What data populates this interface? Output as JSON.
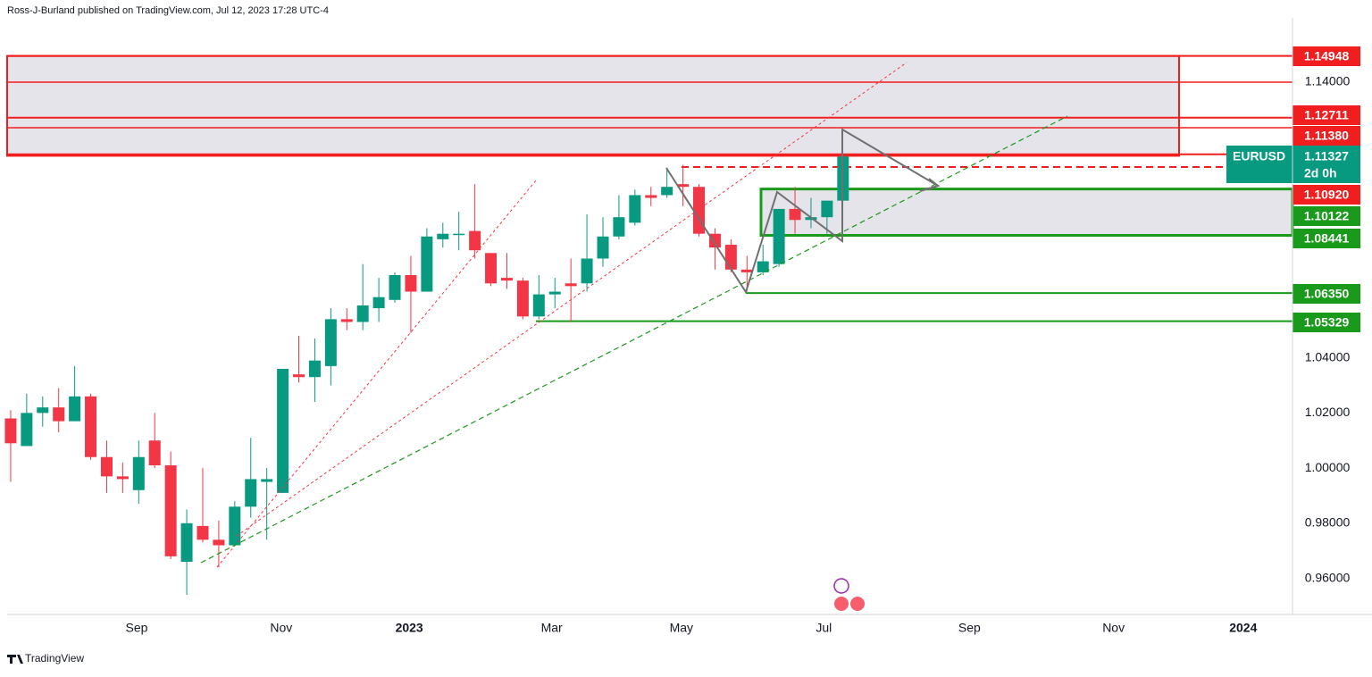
{
  "header": "Ross-J-Burland published on TradingView.com, Jul 12, 2023 17:28 UTC-4",
  "footer": "TradingView",
  "chart_data": {
    "type": "candlestick",
    "series": [
      {
        "name": "EURUSD",
        "countdown": "2d 0h",
        "up_color": "#089981",
        "down_color": "#f23645",
        "open": [
          1.018,
          1.008,
          1.02,
          1.022,
          1.017,
          1.026,
          1.004,
          0.997,
          0.992,
          1.01,
          1.001,
          0.966,
          0.979,
          0.974,
          0.972,
          0.986,
          0.995,
          0.991,
          1.034,
          1.033,
          1.037,
          1.054,
          1.053,
          1.058,
          1.061,
          1.07,
          1.064,
          1.083,
          1.085,
          1.086,
          1.078,
          1.069,
          1.068,
          1.055,
          1.063,
          1.067,
          1.067,
          1.076,
          1.084,
          1.089,
          1.099,
          1.099,
          1.103,
          1.102,
          1.085,
          1.081,
          1.072,
          1.071,
          1.074,
          1.094,
          1.09,
          1.091,
          1.097
        ],
        "high": [
          1.021,
          1.027,
          1.026,
          1.029,
          1.037,
          1.027,
          1.01,
          1.002,
          1.01,
          1.02,
          1.006,
          0.985,
          1.0,
          0.981,
          0.988,
          1.011,
          1.0,
          1.036,
          1.048,
          1.047,
          1.058,
          1.058,
          1.074,
          1.069,
          1.071,
          1.077,
          1.087,
          1.089,
          1.093,
          1.103,
          1.078,
          1.078,
          1.069,
          1.07,
          1.069,
          1.076,
          1.092,
          1.091,
          1.099,
          1.101,
          1.102,
          1.109,
          1.11,
          1.103,
          1.087,
          1.083,
          1.077,
          1.081,
          1.094,
          1.102,
          1.098,
          1.097,
          1.114
        ],
        "low": [
          0.995,
          1.008,
          1.015,
          1.013,
          1.017,
          1.003,
          0.991,
          0.991,
          0.987,
          1.0,
          0.967,
          0.954,
          0.973,
          0.964,
          0.972,
          0.982,
          0.974,
          0.991,
          1.031,
          1.024,
          1.03,
          1.05,
          1.05,
          1.053,
          1.06,
          1.049,
          1.064,
          1.08,
          1.079,
          1.076,
          1.066,
          1.065,
          1.054,
          1.054,
          1.058,
          1.053,
          1.064,
          1.073,
          1.083,
          1.088,
          1.095,
          1.098,
          1.095,
          1.084,
          1.072,
          1.071,
          1.064,
          1.07,
          1.073,
          1.085,
          1.087,
          1.085,
          1.097
        ],
        "close": [
          1.009,
          1.02,
          1.022,
          1.017,
          1.026,
          1.004,
          0.997,
          0.996,
          1.004,
          1.001,
          0.968,
          0.98,
          0.974,
          0.972,
          0.986,
          0.996,
          0.996,
          1.036,
          1.033,
          1.039,
          1.054,
          1.053,
          1.059,
          1.062,
          1.07,
          1.064,
          1.084,
          1.085,
          1.085,
          1.079,
          1.067,
          1.068,
          1.055,
          1.063,
          1.064,
          1.066,
          1.076,
          1.084,
          1.091,
          1.099,
          1.098,
          1.102,
          1.102,
          1.085,
          1.08,
          1.072,
          1.071,
          1.075,
          1.094,
          1.09,
          1.091,
          1.097,
          1.113
        ]
      }
    ],
    "xlim": [
      -0.22,
      80.08
    ],
    "xticks": [
      {
        "value": 7.87,
        "label": "Sep"
      },
      {
        "value": 16.9,
        "label": "Nov"
      },
      {
        "value": 24.9,
        "label": "2023"
      },
      {
        "value": 33.8,
        "label": "Mar"
      },
      {
        "value": 41.9,
        "label": "May"
      },
      {
        "value": 50.8,
        "label": "Jul"
      },
      {
        "value": 59.9,
        "label": "Sep"
      },
      {
        "value": 68.9,
        "label": "Nov"
      },
      {
        "value": 77.0,
        "label": "2024"
      }
    ],
    "ylim": [
      0.9469,
      1.1633
    ],
    "yticks": [
      {
        "value": 0.96,
        "label": "0.96000"
      },
      {
        "value": 0.98,
        "label": "0.98000"
      },
      {
        "value": 1.0,
        "label": "1.00000"
      },
      {
        "value": 1.02,
        "label": "1.02000"
      },
      {
        "value": 1.04,
        "label": "1.04000"
      },
      {
        "value": 1.14,
        "label": "1.14000"
      }
    ],
    "levels": [
      {
        "value": 1.14948,
        "color": "#f01e1e"
      },
      {
        "value": 1.12711,
        "color": "#f01e1e"
      },
      {
        "value": {
          "value": 1.1138,
          "label": "1.11380"
        },
        "color": "#f01e1e"
      },
      {
        "value": {
          "value": 1.1092,
          "label": "1.10920"
        },
        "color": "#f01e1e",
        "dashed": true
      },
      {
        "value": 1.10122,
        "color": "#1a9a1a"
      },
      {
        "value": 1.08441,
        "color": "#1a9a1a"
      },
      {
        "value": {
          "value": 1.0635,
          "label": "1.06350"
        },
        "color": "#1a9a1a"
      },
      {
        "value": 1.05329,
        "color": "#1a9a1a"
      }
    ],
    "last_price": 1.11327,
    "last_color": "#089981"
  }
}
